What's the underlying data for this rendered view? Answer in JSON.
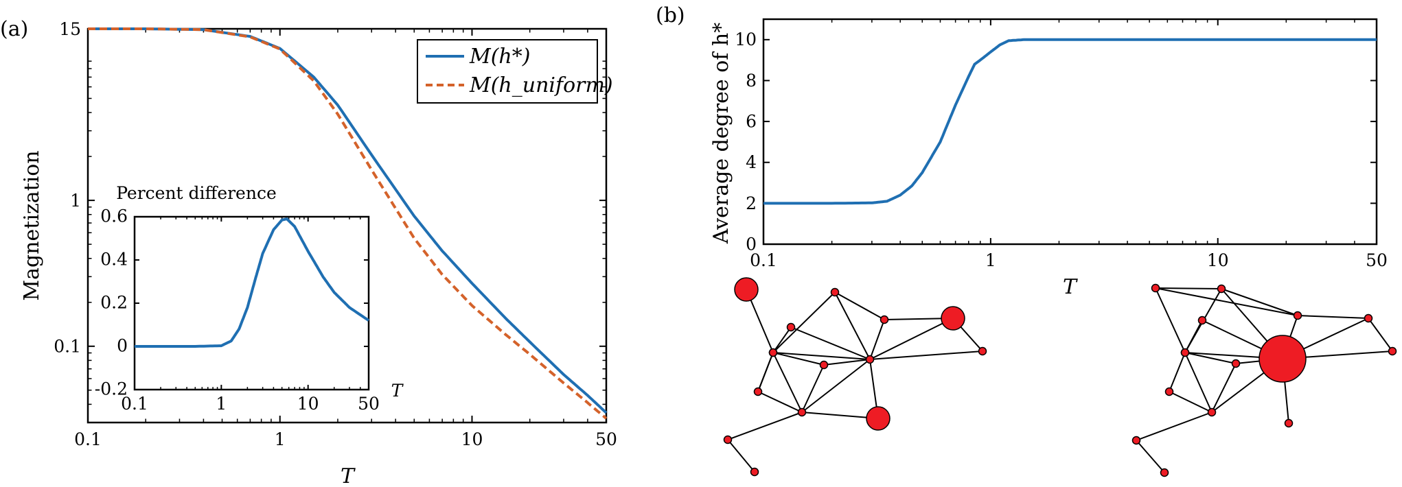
{
  "panels": {
    "a": "(a)",
    "b": "(b)"
  },
  "chart_data": [
    {
      "id": "a-main",
      "type": "line",
      "xscale": "log",
      "yscale": "log",
      "xlim": [
        0.1,
        50
      ],
      "ylim": [
        0.03,
        15
      ],
      "xlabel": "T",
      "ylabel": "Magnetization",
      "xticks": [
        {
          "v": 0.1,
          "label": "0.1"
        },
        {
          "v": 1,
          "label": "1"
        },
        {
          "v": 10,
          "label": "10"
        },
        {
          "v": 50,
          "label": "50"
        }
      ],
      "yticks": [
        {
          "v": 0.1,
          "label": "0.1"
        },
        {
          "v": 1,
          "label": "1"
        },
        {
          "v": 15,
          "label": "15"
        }
      ],
      "legend": {
        "position": "top-right",
        "entries": [
          "M(h*)",
          "M(h_uniform)"
        ]
      },
      "series": [
        {
          "name": "M(h*)",
          "color": "#1f6fb2",
          "style": "solid",
          "x": [
            0.1,
            0.2,
            0.4,
            0.7,
            1.0,
            1.5,
            2.0,
            3.0,
            5.0,
            7.0,
            10,
            15,
            20,
            30,
            40,
            50
          ],
          "y": [
            15,
            15,
            14.8,
            13.3,
            11.0,
            7.0,
            4.5,
            2.05,
            0.78,
            0.45,
            0.27,
            0.155,
            0.107,
            0.064,
            0.046,
            0.035
          ]
        },
        {
          "name": "M(h_uniform)",
          "color": "#d4622a",
          "style": "dashed",
          "x": [
            0.1,
            0.2,
            0.4,
            0.7,
            1.0,
            1.5,
            2.0,
            3.0,
            5.0,
            7.0,
            10,
            15,
            20,
            30,
            40,
            50
          ],
          "y": [
            15,
            15,
            14.8,
            13.2,
            10.9,
            6.6,
            3.9,
            1.62,
            0.55,
            0.31,
            0.19,
            0.12,
            0.088,
            0.056,
            0.041,
            0.032
          ]
        }
      ]
    },
    {
      "id": "a-inset",
      "type": "line",
      "xscale": "log",
      "title": "Percent difference",
      "xlabel": "T",
      "xlim": [
        0.1,
        50
      ],
      "ylim": [
        -0.2,
        0.6
      ],
      "xticks": [
        {
          "v": 0.1,
          "label": "0.1"
        },
        {
          "v": 1,
          "label": "1"
        },
        {
          "v": 10,
          "label": "10"
        },
        {
          "v": 50,
          "label": "50"
        }
      ],
      "yticks": [
        {
          "v": -0.2,
          "label": "-0.2"
        },
        {
          "v": 0,
          "label": "0"
        },
        {
          "v": 0.2,
          "label": "0.2"
        },
        {
          "v": 0.4,
          "label": "0.4"
        },
        {
          "v": 0.6,
          "label": "0.6"
        }
      ],
      "series": [
        {
          "name": "percent difference",
          "color": "#1f6fb2",
          "x": [
            0.1,
            0.5,
            1.0,
            1.3,
            1.6,
            2.0,
            2.5,
            3.0,
            4.0,
            5.0,
            5.7,
            7.0,
            10,
            15,
            20,
            30,
            50
          ],
          "y": [
            0,
            0,
            0.003,
            0.025,
            0.08,
            0.18,
            0.32,
            0.43,
            0.54,
            0.585,
            0.59,
            0.555,
            0.44,
            0.32,
            0.25,
            0.18,
            0.12
          ]
        }
      ]
    },
    {
      "id": "b-main",
      "type": "line",
      "xscale": "log",
      "xlim": [
        0.1,
        50
      ],
      "ylim": [
        0,
        11
      ],
      "xlabel": "T",
      "ylabel": "Average degree of h*",
      "xticks": [
        {
          "v": 0.1,
          "label": "0.1"
        },
        {
          "v": 1,
          "label": "1"
        },
        {
          "v": 10,
          "label": "10"
        },
        {
          "v": 50,
          "label": "50"
        }
      ],
      "yticks": [
        {
          "v": 0,
          "label": "0"
        },
        {
          "v": 2,
          "label": "2"
        },
        {
          "v": 4,
          "label": "4"
        },
        {
          "v": 6,
          "label": "6"
        },
        {
          "v": 8,
          "label": "8"
        },
        {
          "v": 10,
          "label": "10"
        }
      ],
      "series": [
        {
          "name": "average degree",
          "color": "#1f6fb2",
          "x": [
            0.1,
            0.2,
            0.3,
            0.35,
            0.4,
            0.45,
            0.5,
            0.6,
            0.7,
            0.8,
            0.85,
            0.9,
            1.0,
            1.1,
            1.2,
            1.4,
            2,
            5,
            10,
            50
          ],
          "y": [
            2,
            2,
            2.02,
            2.1,
            2.4,
            2.85,
            3.5,
            5.0,
            6.8,
            8.2,
            8.8,
            9.0,
            9.4,
            9.75,
            9.95,
            10,
            10,
            10,
            10,
            10
          ]
        }
      ]
    }
  ],
  "networks": {
    "edges": [
      [
        0,
        12
      ],
      [
        1,
        2
      ],
      [
        1,
        3
      ],
      [
        1,
        6
      ],
      [
        1,
        11
      ],
      [
        2,
        3
      ],
      [
        2,
        4
      ],
      [
        2,
        12
      ],
      [
        2,
        7
      ],
      [
        3,
        5
      ],
      [
        3,
        12
      ],
      [
        3,
        8
      ],
      [
        4,
        12
      ],
      [
        5,
        12
      ],
      [
        5,
        8
      ],
      [
        6,
        12
      ],
      [
        6,
        7
      ],
      [
        6,
        9
      ],
      [
        7,
        12
      ],
      [
        7,
        14
      ],
      [
        9,
        10
      ],
      [
        9,
        14
      ],
      [
        10,
        14
      ],
      [
        11,
        13
      ],
      [
        12,
        13
      ],
      [
        13,
        14
      ],
      [
        12,
        4
      ],
      [
        12,
        8
      ]
    ],
    "left": {
      "sizes": [
        "large",
        "small",
        "small",
        "small",
        "small",
        "small",
        "small",
        "small",
        "large",
        "small",
        "small",
        "small",
        "small",
        "large",
        "small"
      ]
    },
    "right": {
      "sizes": [
        "small",
        "small",
        "small",
        "small",
        "small",
        "small",
        "small",
        "small",
        "small",
        "small",
        "small",
        "small",
        "hub",
        "small",
        "small"
      ]
    }
  }
}
